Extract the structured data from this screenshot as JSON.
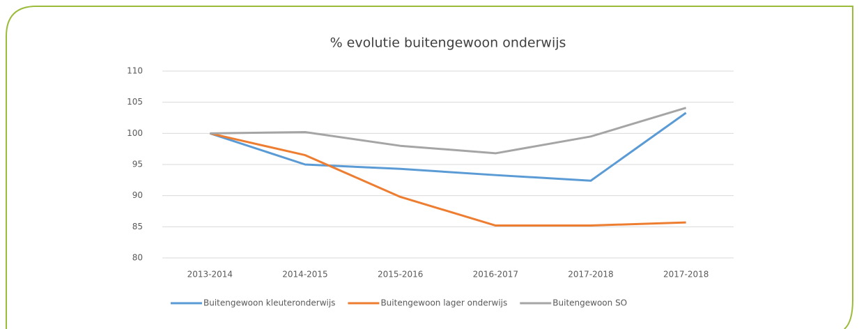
{
  "chart_data": {
    "type": "line",
    "title": "% evolutie buitengewoon onderwijs",
    "categories": [
      "2013-2014",
      "2014-2015",
      "2015-2016",
      "2016-2017",
      "2017-2018",
      "2017-2018"
    ],
    "series": [
      {
        "name": "Buitengewoon kleuteronderwijs",
        "color": "#5b9bd5",
        "values": [
          100,
          95,
          94.3,
          93.3,
          92.4,
          103.3
        ]
      },
      {
        "name": "Buitengewoon lager onderwijs",
        "color": "#ed7d31",
        "values": [
          100,
          96.5,
          89.8,
          85.2,
          85.2,
          85.7
        ]
      },
      {
        "name": "Buitengewoon SO",
        "color": "#a5a5a5",
        "values": [
          100,
          100.2,
          98,
          96.8,
          99.5,
          104.1
        ]
      }
    ],
    "ylim": [
      80,
      110
    ],
    "yticks": [
      80,
      85,
      90,
      95,
      100,
      105,
      110
    ],
    "grid": true,
    "legend": "bottom"
  }
}
